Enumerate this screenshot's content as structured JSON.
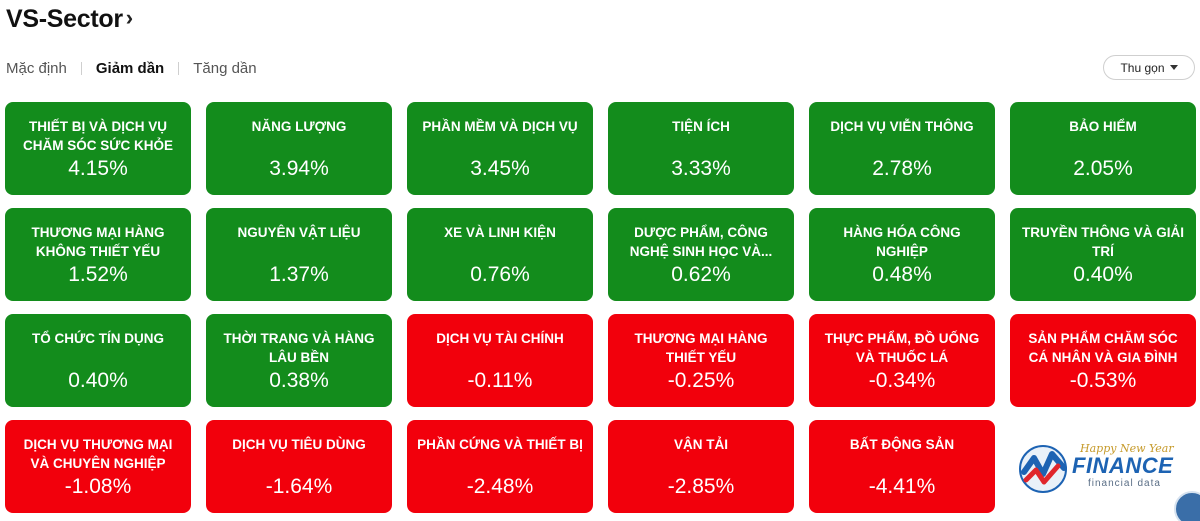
{
  "header": {
    "title": "VS-Sector",
    "chevron": "›"
  },
  "sort": {
    "options": [
      "Mặc định",
      "Giảm dần",
      "Tăng dần"
    ],
    "active": "Giảm dần"
  },
  "collapse_button": {
    "label": "Thu gọn",
    "icon": "caret-down-icon"
  },
  "colors": {
    "up": "#138c1c",
    "down": "#f2000c"
  },
  "sectors": [
    {
      "name": "THIẾT BỊ VÀ DỊCH VỤ CHĂM SÓC SỨC KHỎE",
      "change": "4.15%",
      "direction": "up"
    },
    {
      "name": "NĂNG LƯỢNG",
      "change": "3.94%",
      "direction": "up"
    },
    {
      "name": "PHẦN MỀM VÀ DỊCH VỤ",
      "change": "3.45%",
      "direction": "up"
    },
    {
      "name": "TIỆN ÍCH",
      "change": "3.33%",
      "direction": "up"
    },
    {
      "name": "DỊCH VỤ VIỄN THÔNG",
      "change": "2.78%",
      "direction": "up"
    },
    {
      "name": "BẢO HIỂM",
      "change": "2.05%",
      "direction": "up"
    },
    {
      "name": "THƯƠNG MẠI HÀNG KHÔNG THIẾT YẾU",
      "change": "1.52%",
      "direction": "up"
    },
    {
      "name": "NGUYÊN VẬT LIỆU",
      "change": "1.37%",
      "direction": "up"
    },
    {
      "name": "XE VÀ LINH KIỆN",
      "change": "0.76%",
      "direction": "up"
    },
    {
      "name": "DƯỢC PHẨM, CÔNG NGHỆ SINH HỌC VÀ...",
      "change": "0.62%",
      "direction": "up"
    },
    {
      "name": "HÀNG HÓA CÔNG NGHIỆP",
      "change": "0.48%",
      "direction": "up"
    },
    {
      "name": "TRUYỀN THÔNG VÀ GIẢI TRÍ",
      "change": "0.40%",
      "direction": "up"
    },
    {
      "name": "TỔ CHỨC TÍN DỤNG",
      "change": "0.40%",
      "direction": "up"
    },
    {
      "name": "THỜI TRANG VÀ HÀNG LÂU BỀN",
      "change": "0.38%",
      "direction": "up"
    },
    {
      "name": "DỊCH VỤ TÀI CHÍNH",
      "change": "-0.11%",
      "direction": "down"
    },
    {
      "name": "THƯƠNG MẠI HÀNG THIẾT YẾU",
      "change": "-0.25%",
      "direction": "down"
    },
    {
      "name": "THỰC PHẨM, ĐỒ UỐNG VÀ THUỐC LÁ",
      "change": "-0.34%",
      "direction": "down"
    },
    {
      "name": "SẢN PHẨM CHĂM SÓC CÁ NHÂN VÀ GIA ĐÌNH",
      "change": "-0.53%",
      "direction": "down"
    },
    {
      "name": "DỊCH VỤ THƯƠNG MẠI VÀ CHUYÊN NGHIỆP",
      "change": "-1.08%",
      "direction": "down"
    },
    {
      "name": "DỊCH VỤ TIÊU DÙNG",
      "change": "-1.64%",
      "direction": "down"
    },
    {
      "name": "PHẦN CỨNG VÀ THIẾT BỊ",
      "change": "-2.48%",
      "direction": "down"
    },
    {
      "name": "VẬN TẢI",
      "change": "-2.85%",
      "direction": "down"
    },
    {
      "name": "BẤT ĐỘNG SẢN",
      "change": "-4.41%",
      "direction": "down"
    }
  ],
  "logo": {
    "greeting": "Happy New Year",
    "brand": "FINANCE",
    "tagline": "financial data",
    "icon": "vfinance-logo-icon"
  }
}
